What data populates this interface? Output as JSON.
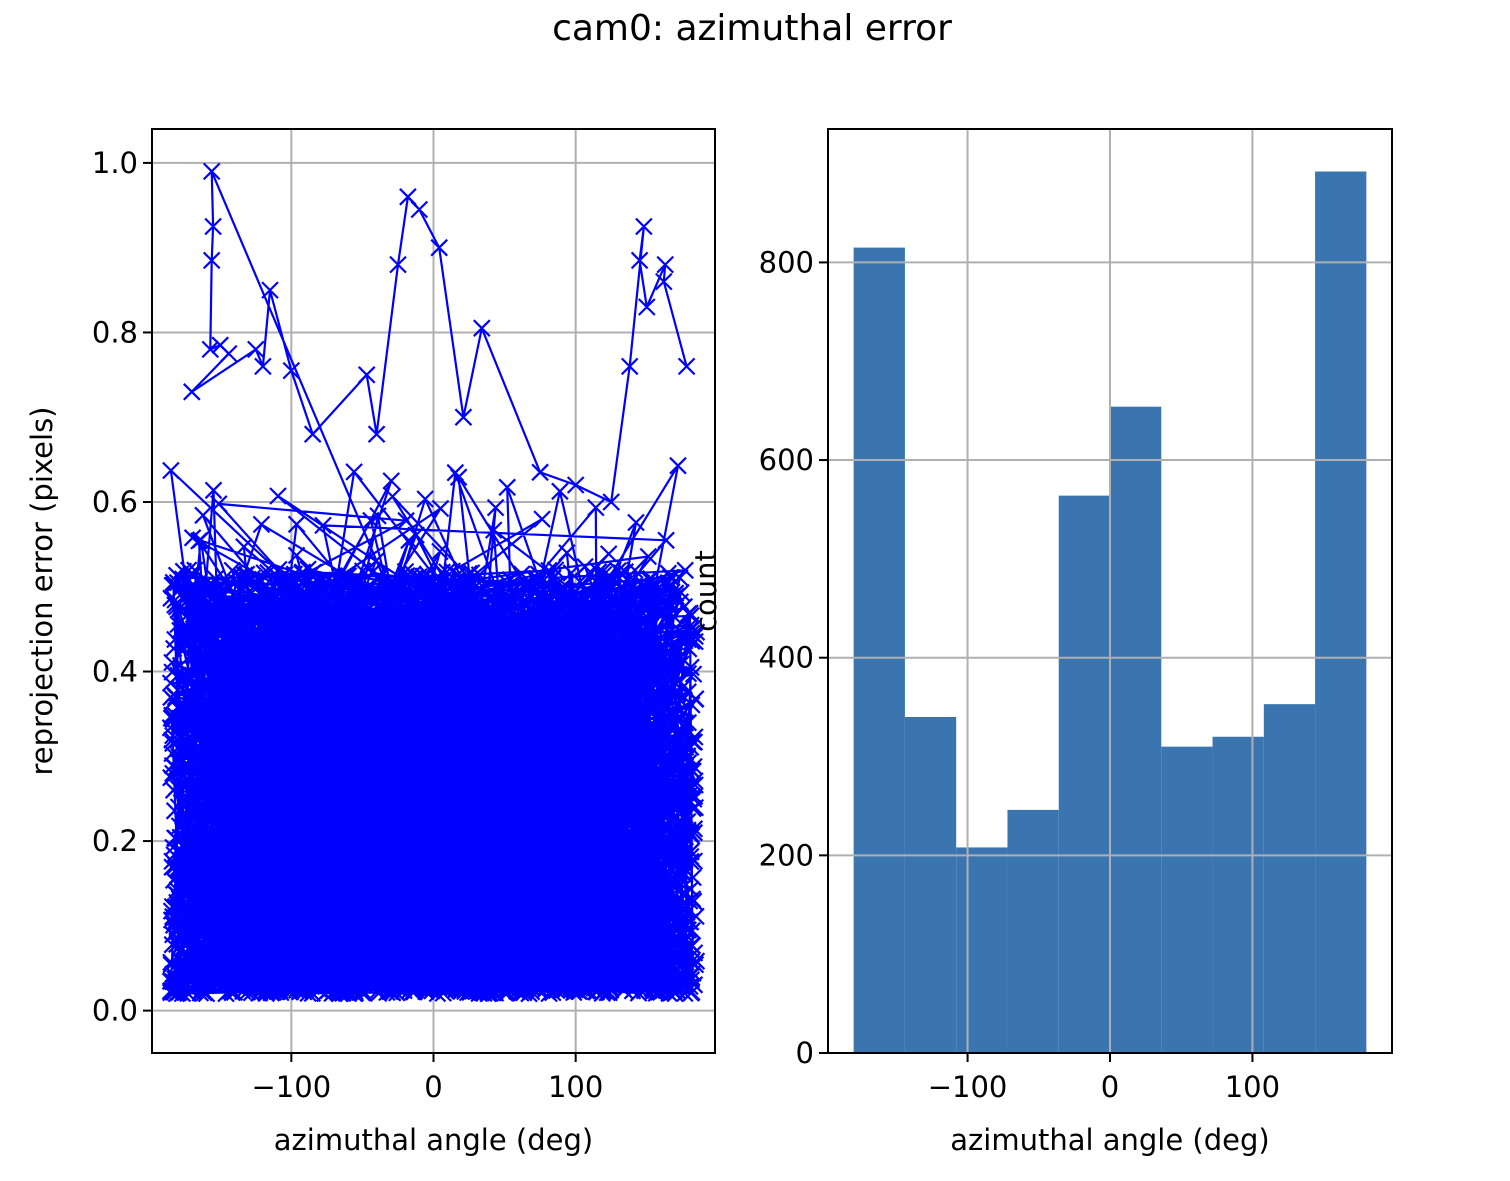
{
  "figure": {
    "title": "cam0: azimuthal error"
  },
  "colors": {
    "scatter": "#0000ff",
    "hist_bar": "#3b75af",
    "grid": "#b0b0b0",
    "axes": "#000000",
    "background": "#ffffff"
  },
  "chart_data": [
    {
      "type": "line",
      "marker": "x",
      "title": "",
      "xlabel": "azimuthal angle (deg)",
      "ylabel": "reprojection error (pixels)",
      "xlim": [
        -198,
        198
      ],
      "ylim": [
        -0.05,
        1.04
      ],
      "xticks": [
        -100,
        0,
        100
      ],
      "xtick_labels": [
        "−100",
        "0",
        "100"
      ],
      "yticks": [
        0.0,
        0.2,
        0.4,
        0.6,
        0.8,
        1.0
      ],
      "ytick_labels": [
        "0.0",
        "0.2",
        "0.4",
        "0.6",
        "0.8",
        "1.0"
      ],
      "grid": true,
      "x_range": [
        -185,
        185
      ],
      "n_points": 4500,
      "peaks": [
        {
          "x": -156,
          "y": 0.99
        },
        {
          "x": -155,
          "y": 0.925
        },
        {
          "x": -156,
          "y": 0.885
        },
        {
          "x": -157,
          "y": 0.78
        },
        {
          "x": -150,
          "y": 0.785
        },
        {
          "x": -144,
          "y": 0.775
        },
        {
          "x": -170,
          "y": 0.73
        },
        {
          "x": -125,
          "y": 0.78
        },
        {
          "x": -120,
          "y": 0.76
        },
        {
          "x": -115,
          "y": 0.85
        },
        {
          "x": -100,
          "y": 0.755
        },
        {
          "x": -85,
          "y": 0.68
        },
        {
          "x": -47,
          "y": 0.75
        },
        {
          "x": -40,
          "y": 0.68
        },
        {
          "x": -25,
          "y": 0.88
        },
        {
          "x": -18,
          "y": 0.96
        },
        {
          "x": -10,
          "y": 0.945
        },
        {
          "x": 4,
          "y": 0.9
        },
        {
          "x": 21,
          "y": 0.7
        },
        {
          "x": 34,
          "y": 0.805
        },
        {
          "x": 75,
          "y": 0.635
        },
        {
          "x": 100,
          "y": 0.62
        },
        {
          "x": 125,
          "y": 0.6
        },
        {
          "x": 138,
          "y": 0.76
        },
        {
          "x": 148,
          "y": 0.925
        },
        {
          "x": 145,
          "y": 0.885
        },
        {
          "x": 150,
          "y": 0.83
        },
        {
          "x": 163,
          "y": 0.88
        },
        {
          "x": 162,
          "y": 0.86
        },
        {
          "x": 178,
          "y": 0.76
        }
      ]
    },
    {
      "type": "bar",
      "title": "",
      "xlabel": "azimuthal angle (deg)",
      "ylabel": "count",
      "xlim": [
        -198,
        198
      ],
      "ylim": [
        0,
        935
      ],
      "xticks": [
        -100,
        0,
        100
      ],
      "xtick_labels": [
        "−100",
        "0",
        "100"
      ],
      "yticks": [
        0,
        200,
        400,
        600,
        800
      ],
      "ytick_labels": [
        "0",
        "200",
        "400",
        "600",
        "800"
      ],
      "grid": true,
      "bin_edges": [
        -180,
        -144,
        -108,
        -72,
        -36,
        0,
        36,
        72,
        108,
        144,
        180
      ],
      "values": [
        815,
        340,
        208,
        246,
        564,
        654,
        310,
        320,
        353,
        892
      ]
    }
  ]
}
